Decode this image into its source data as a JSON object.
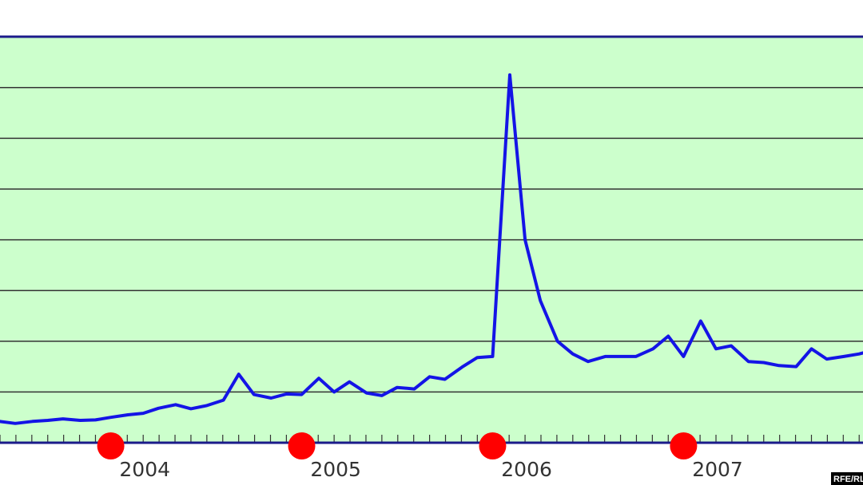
{
  "chart_data": {
    "type": "line",
    "title": "",
    "xlabel": "",
    "ylabel": "",
    "x_tick_labels": [
      "2004",
      "2005",
      "2006",
      "2007"
    ],
    "x_tick_positions": [
      2004.0,
      2005.0,
      2006.0,
      2007.0
    ],
    "xlim": [
      2003.25,
      2007.77
    ],
    "ylim": [
      0,
      8
    ],
    "gridlines_y": [
      1,
      2,
      3,
      4,
      5,
      6,
      7
    ],
    "grid": true,
    "legend": "none",
    "series": [
      {
        "values_x": [
          2003.25,
          2003.33,
          2003.42,
          2003.5,
          2003.58,
          2003.67,
          2003.75,
          2003.83,
          2003.92,
          2004.0,
          2004.08,
          2004.17,
          2004.25,
          2004.33,
          2004.42,
          2004.5,
          2004.58,
          2004.67,
          2004.75,
          2004.83,
          2004.92,
          2005.0,
          2005.08,
          2005.17,
          2005.25,
          2005.33,
          2005.42,
          2005.5,
          2005.58,
          2005.67,
          2005.75,
          2005.83,
          2005.92,
          2006.0,
          2006.08,
          2006.17,
          2006.25,
          2006.33,
          2006.42,
          2006.5,
          2006.58,
          2006.67,
          2006.75,
          2006.83,
          2006.92,
          2007.0,
          2007.08,
          2007.17,
          2007.25,
          2007.33,
          2007.42,
          2007.5,
          2007.58,
          2007.67,
          2007.75,
          2007.77
        ],
        "values": [
          0.42,
          0.38,
          0.42,
          0.44,
          0.47,
          0.44,
          0.45,
          0.5,
          0.55,
          0.58,
          0.68,
          0.75,
          0.67,
          0.73,
          0.84,
          1.35,
          0.95,
          0.88,
          0.96,
          0.95,
          1.27,
          1.0,
          1.2,
          0.98,
          0.93,
          1.09,
          1.06,
          1.3,
          1.25,
          1.49,
          1.68,
          1.7,
          7.25,
          4.0,
          2.8,
          2.0,
          1.75,
          1.6,
          1.7,
          1.7,
          1.7,
          1.85,
          2.1,
          1.7,
          2.4,
          1.85,
          1.91,
          1.6,
          1.58,
          1.52,
          1.5,
          1.85,
          1.65,
          1.7,
          1.75,
          1.77
        ],
        "color": "#1414e6"
      }
    ],
    "event_markers_x": [
      2003.83,
      2004.83,
      2005.83,
      2006.83
    ],
    "event_marker_color": "#ff0000",
    "plot_background": "#ccffcc"
  },
  "credit": "RFE/RL"
}
